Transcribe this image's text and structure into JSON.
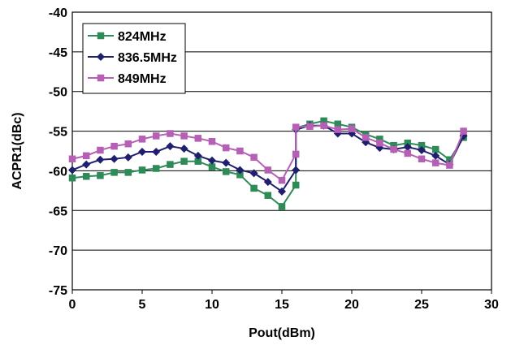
{
  "chart_data": {
    "type": "line",
    "xlabel": "Pout(dBm)",
    "ylabel": "ACPR1(dBc)",
    "xlim": [
      0,
      30
    ],
    "ylim": [
      -75,
      -40
    ],
    "xticks": [
      0,
      5,
      10,
      15,
      20,
      25,
      30
    ],
    "yticks": [
      -40,
      -45,
      -50,
      -55,
      -60,
      -65,
      -70,
      -75
    ],
    "grid": "horizontal",
    "legend_position": "top-left",
    "x": [
      0,
      1,
      2,
      3,
      4,
      5,
      6,
      7,
      8,
      9,
      10,
      11,
      12,
      13,
      14,
      15,
      16,
      16,
      17,
      18,
      19,
      20,
      21,
      22,
      23,
      24,
      25,
      26,
      27,
      28
    ],
    "series": [
      {
        "name": "824MHz",
        "color": "#2e8b57",
        "marker": "square",
        "values": [
          -60.9,
          -60.7,
          -60.6,
          -60.2,
          -60.2,
          -59.9,
          -59.7,
          -59.2,
          -58.8,
          -58.8,
          -59.5,
          -60.1,
          -60.5,
          -62.2,
          -63.1,
          -64.5,
          -61.8,
          -54.6,
          -54.1,
          -53.7,
          -54.1,
          -54.5,
          -55.4,
          -56.0,
          -56.8,
          -56.5,
          -56.8,
          -57.3,
          -58.6,
          -55.8
        ]
      },
      {
        "name": "836.5MHz",
        "color": "#1f1f6e",
        "marker": "diamond",
        "values": [
          -59.9,
          -59.2,
          -58.6,
          -58.5,
          -58.3,
          -57.6,
          -57.6,
          -56.9,
          -57.2,
          -58.1,
          -58.7,
          -59.0,
          -59.9,
          -60.3,
          -61.4,
          -62.6,
          -59.9,
          -54.8,
          -54.3,
          -54.3,
          -55.3,
          -55.3,
          -56.4,
          -57.1,
          -57.3,
          -57.0,
          -57.4,
          -58.1,
          -59.2,
          -55.6
        ]
      },
      {
        "name": "849MHz",
        "color": "#b55fb5",
        "marker": "square",
        "values": [
          -58.5,
          -58.1,
          -57.4,
          -56.9,
          -56.6,
          -56.0,
          -55.6,
          -55.3,
          -55.6,
          -55.9,
          -56.3,
          -57.1,
          -57.5,
          -58.3,
          -59.9,
          -61.2,
          -57.9,
          -54.5,
          -54.4,
          -54.3,
          -54.8,
          -54.7,
          -55.8,
          -56.5,
          -57.3,
          -57.8,
          -58.5,
          -59.0,
          -59.3,
          -55.0
        ]
      }
    ]
  }
}
